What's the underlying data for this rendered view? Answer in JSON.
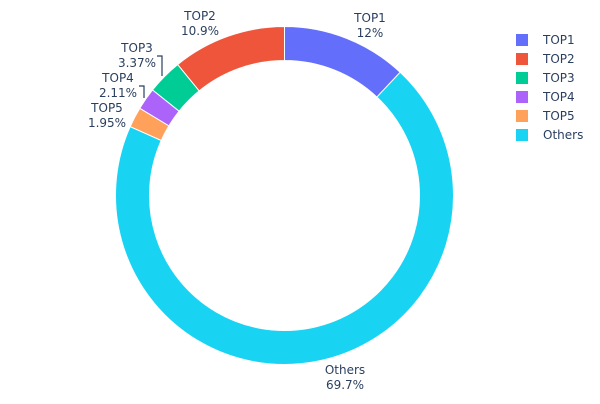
{
  "chart_data": {
    "type": "pie",
    "hole": true,
    "labels": [
      "TOP1",
      "TOP2",
      "TOP3",
      "TOP4",
      "TOP5",
      "Others"
    ],
    "values": [
      12,
      10.9,
      3.37,
      2.11,
      1.95,
      69.7
    ],
    "value_labels": [
      "12%",
      "10.9%",
      "3.37%",
      "2.11%",
      "1.95%",
      "69.7%"
    ],
    "colors": [
      "#636efa",
      "#ef553b",
      "#00cc96",
      "#ab63fa",
      "#ffa15a",
      "#19d3f3"
    ],
    "legend": {
      "placement": "top-right",
      "entries": [
        "TOP1",
        "TOP2",
        "TOP3",
        "TOP4",
        "TOP5",
        "Others"
      ]
    }
  }
}
